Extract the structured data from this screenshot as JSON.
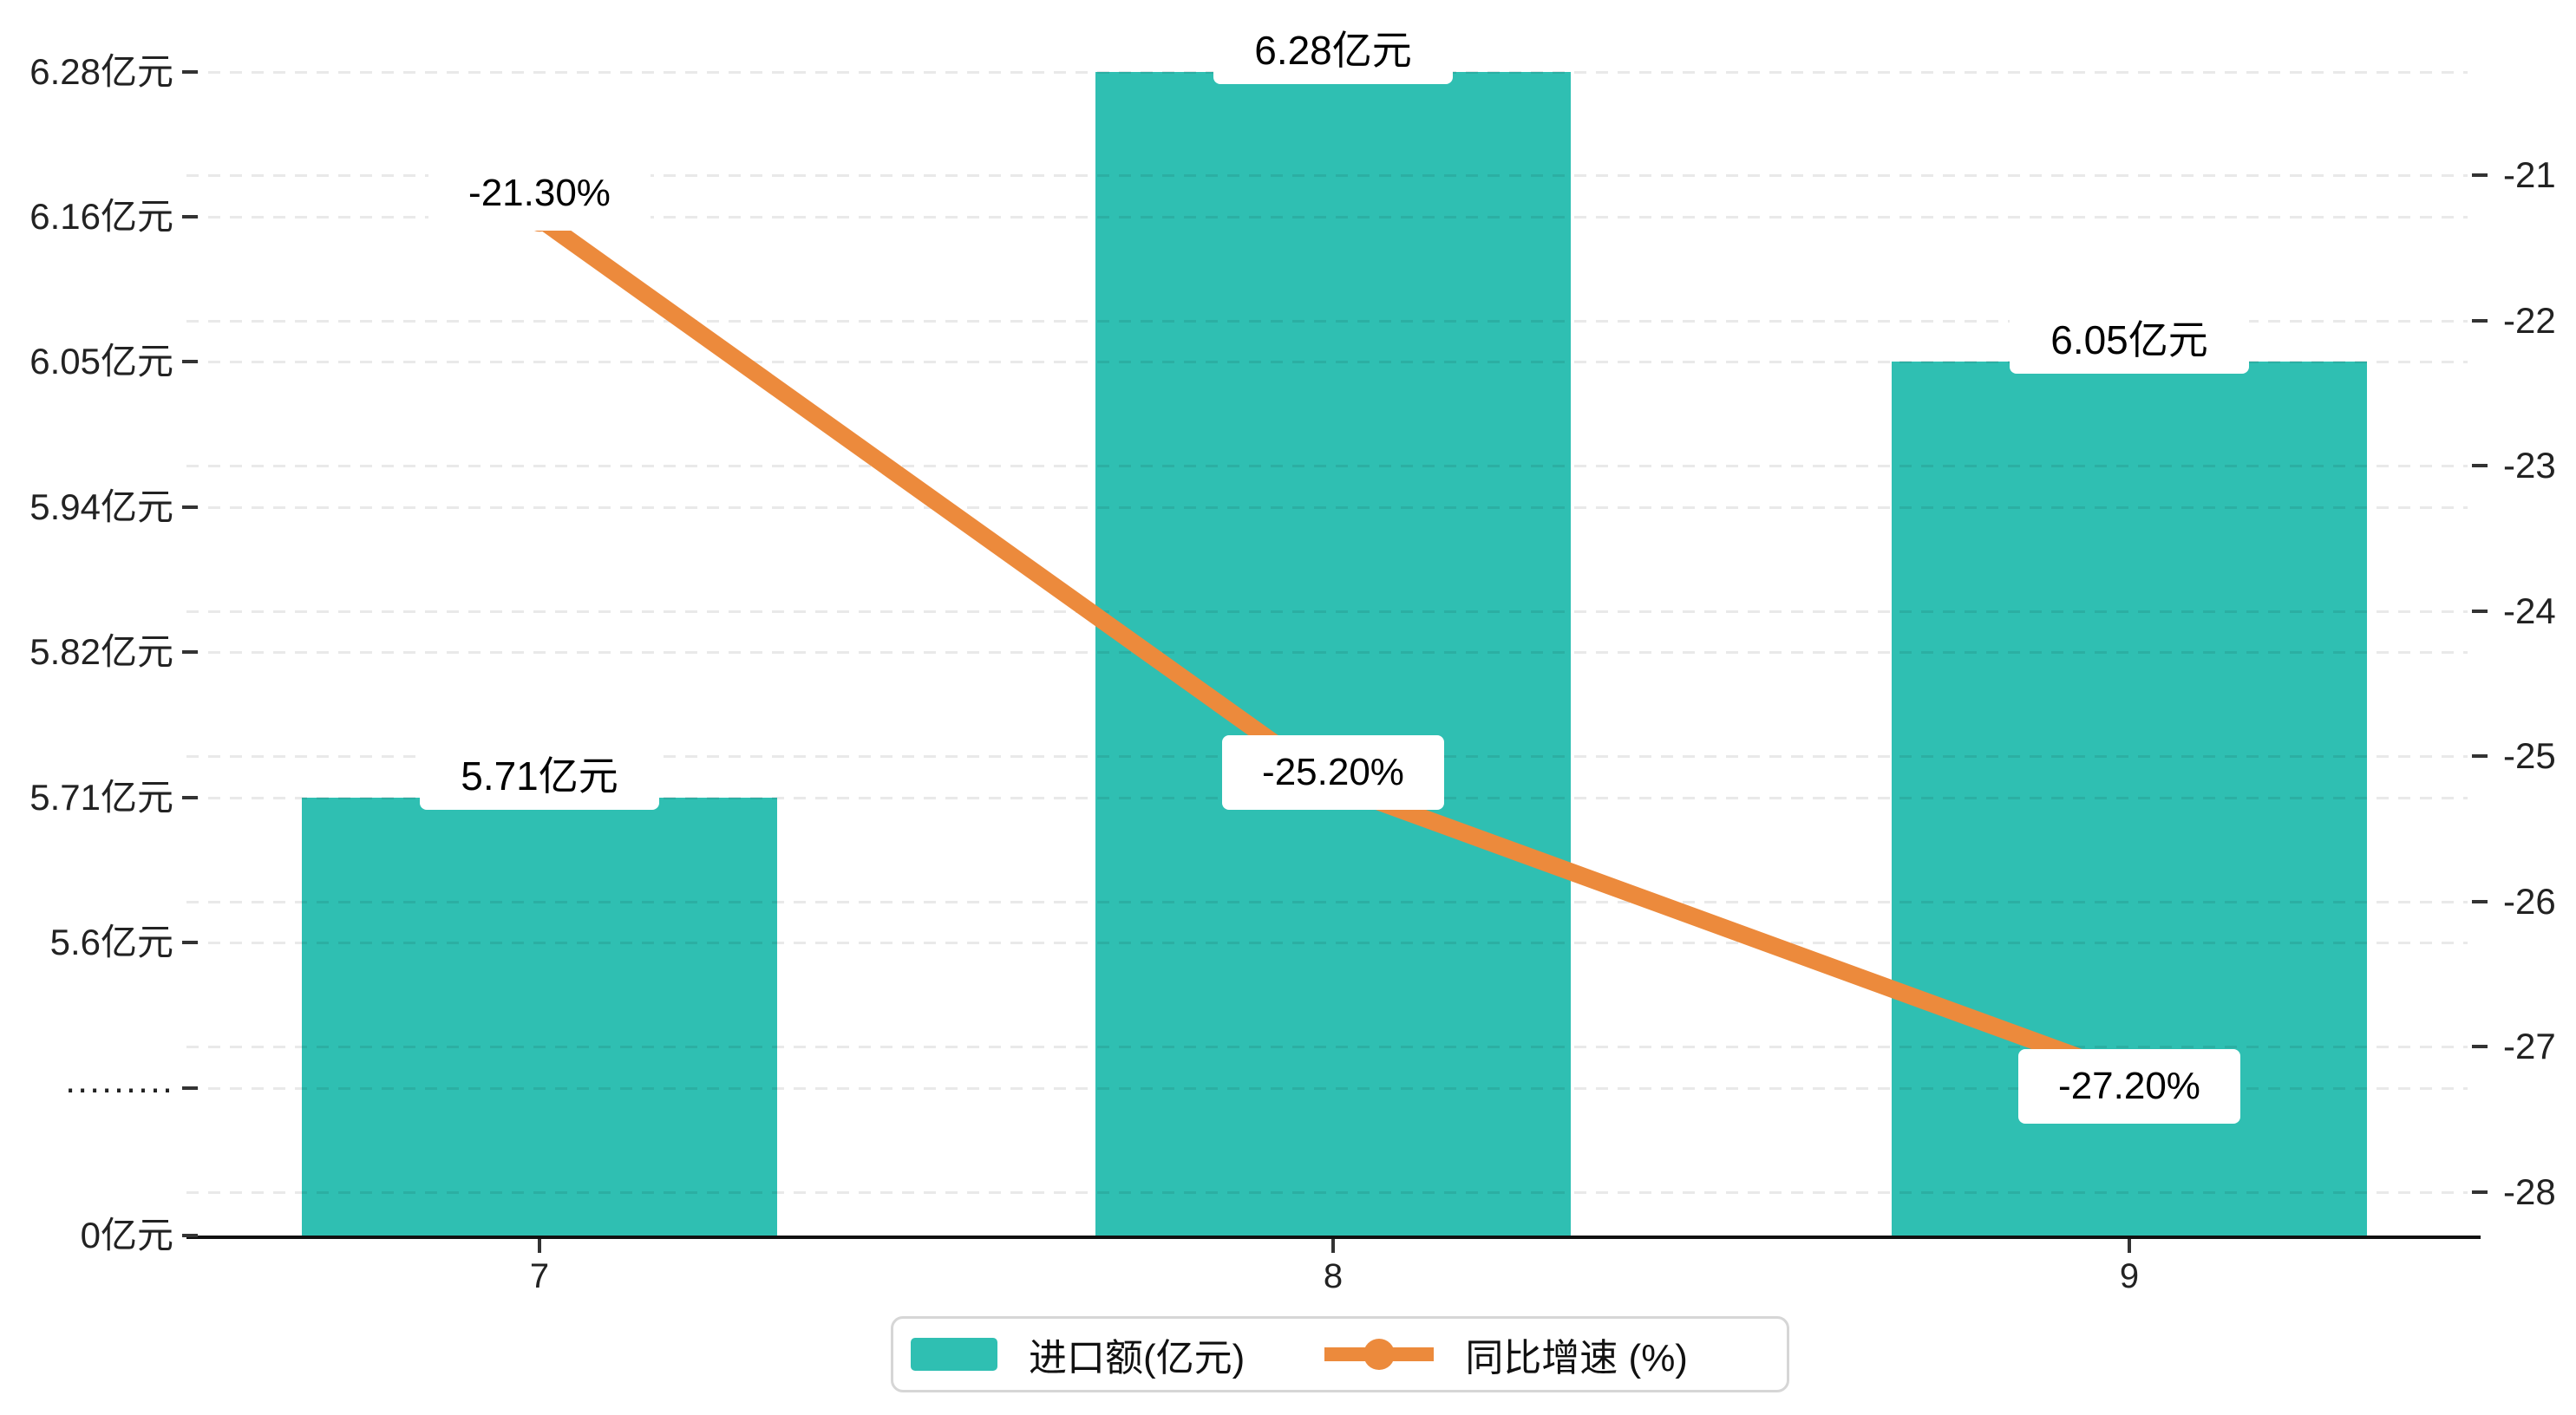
{
  "chart_data": {
    "type": "combo",
    "categories": [
      "7",
      "8",
      "9"
    ],
    "series": [
      {
        "name": "进口额(亿元)",
        "type": "bar",
        "axis": "left",
        "color": "#2FBFB2",
        "values": [
          5.71,
          6.28,
          6.05
        ],
        "labels": [
          "5.71亿元",
          "6.28亿元",
          "6.05亿元"
        ]
      },
      {
        "name": "同比增速 (%)",
        "type": "line",
        "axis": "right",
        "color": "#EC8A3C",
        "values": [
          -21.3,
          -25.2,
          -27.2
        ],
        "labels": [
          "-21.30%",
          "-25.20%",
          "-27.20%"
        ]
      }
    ],
    "left_axis": {
      "tick_labels": [
        "6.28亿元",
        "6.16亿元",
        "6.05亿元",
        "5.94亿元",
        "5.82亿元",
        "5.71亿元",
        "5.6亿元",
        "·········",
        "0亿元"
      ],
      "tick_values": [
        6.28,
        6.16,
        6.05,
        5.94,
        5.82,
        5.71,
        5.6,
        null,
        0
      ],
      "broken_axis": true
    },
    "right_axis": {
      "tick_labels": [
        "-21",
        "-22",
        "-23",
        "-24",
        "-25",
        "-26",
        "-27",
        "-28"
      ],
      "tick_values": [
        -21,
        -22,
        -23,
        -24,
        -25,
        -26,
        -27,
        -28
      ]
    },
    "grid": "dashed-horizontal",
    "legend_position": "bottom-center",
    "colors": {
      "bar": "#2FBFB2",
      "line": "#EC8A3C",
      "axis_text": "#222222",
      "gridline": "rgba(0,0,0,0.085)",
      "label_text": "#000000",
      "legend_border": "#d6d6d6"
    }
  }
}
